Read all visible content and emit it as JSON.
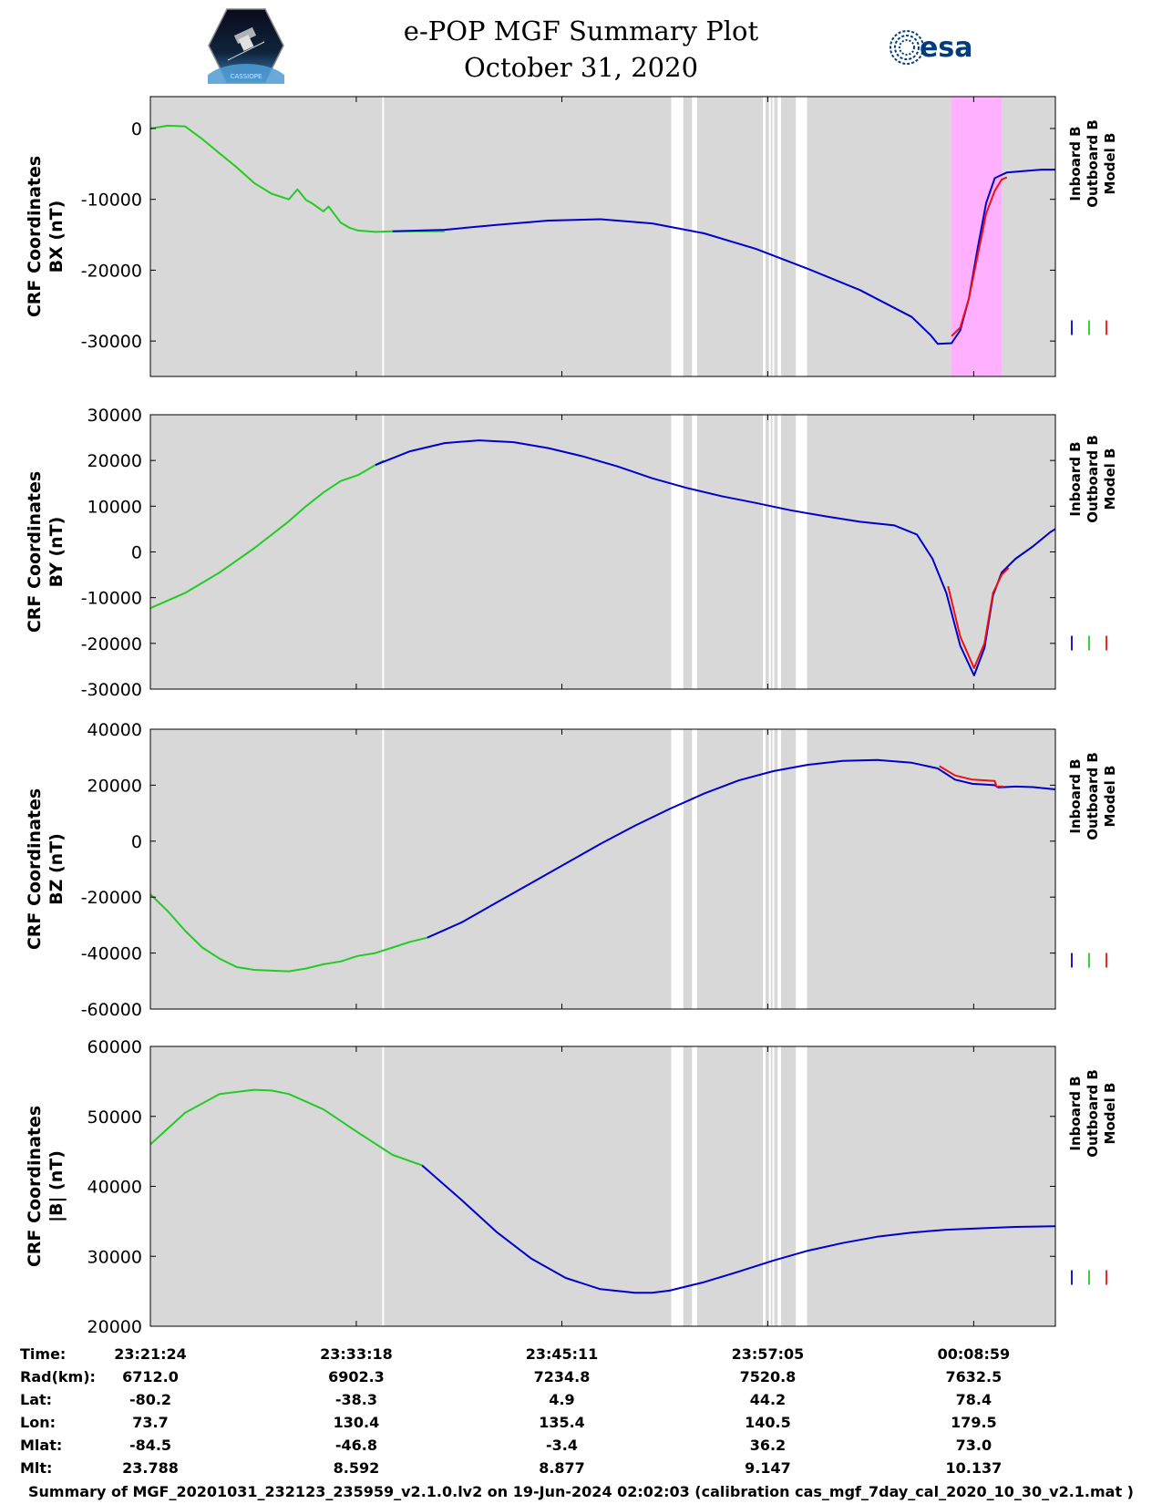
{
  "header": {
    "title_line1": "e-POP MGF Summary Plot",
    "title_line2": "October 31, 2020",
    "logo_left_caption": "CASSIOPE",
    "logo_right_text": "esa"
  },
  "colors": {
    "inboard": "#0000cc",
    "outboard": "#22cc22",
    "model": "#ee1111",
    "plot_background": "#d8d8d8",
    "highlight": "#ffb0ff"
  },
  "legend": {
    "inboard": "Inboard B",
    "outboard": "Outboard B",
    "model": "Model B"
  },
  "chart_data": [
    {
      "type": "line",
      "panel": "BX",
      "ylabel_line1": "CRF Coordinates",
      "ylabel_line2": "BX (nT)",
      "ylim": [
        -35000,
        4500
      ],
      "yticks": [
        0,
        -10000,
        -20000,
        -30000
      ],
      "ytick_labels": [
        "0",
        "-10000",
        "-20000",
        "-30000"
      ],
      "highlight_range_min": [
        46.3,
        49.2
      ],
      "series": [
        {
          "name": "Outboard B",
          "color_key": "outboard",
          "x": [
            0,
            1,
            2,
            3,
            4,
            5,
            6,
            7,
            8,
            8.5,
            9,
            9.3,
            9.6,
            10,
            10.3,
            10.6,
            11,
            11.5,
            12,
            13,
            14,
            14,
            15,
            16,
            17
          ],
          "y": [
            0,
            400,
            300,
            -1500,
            -3500,
            -5500,
            -7700,
            -9200,
            -10000,
            -8600,
            -10100,
            -10500,
            -11000,
            -11700,
            -11000,
            -12000,
            -13300,
            -14000,
            -14400,
            -14600,
            -14500,
            -14500,
            -14500,
            -14500,
            -14500
          ]
        },
        {
          "name": "Inboard B",
          "color_key": "inboard",
          "x": [
            14,
            17,
            20,
            23,
            26,
            29,
            32,
            35,
            38,
            41,
            44,
            45.1,
            45.5,
            46.3,
            46.8,
            47.3,
            47.8,
            48.3,
            48.8,
            49.5,
            50.5,
            51.5,
            52.3
          ],
          "y": [
            -14500,
            -14300,
            -13600,
            -13000,
            -12800,
            -13400,
            -14800,
            -17000,
            -19800,
            -22800,
            -26600,
            -29200,
            -30400,
            -30300,
            -28500,
            -24000,
            -17000,
            -10500,
            -7000,
            -6200,
            -6000,
            -5800,
            -5800
          ]
        },
        {
          "name": "Model B",
          "color_key": "model",
          "x": [
            46.3,
            46.8,
            47.3,
            47.8,
            48.3,
            48.8,
            49.2,
            49.5
          ],
          "y": [
            -29300,
            -28100,
            -24000,
            -18000,
            -12000,
            -8800,
            -7200,
            -6900
          ]
        }
      ]
    },
    {
      "type": "line",
      "panel": "BY",
      "ylabel_line1": "CRF Coordinates",
      "ylabel_line2": "BY (nT)",
      "ylim": [
        -30000,
        30000
      ],
      "yticks": [
        30000,
        20000,
        10000,
        0,
        -10000,
        -20000,
        -30000
      ],
      "ytick_labels": [
        "30000",
        "20000",
        "10000",
        "0",
        "-10000",
        "-20000",
        "-30000"
      ],
      "series": [
        {
          "name": "Outboard B",
          "color_key": "outboard",
          "x": [
            0,
            2,
            4,
            6,
            8,
            9,
            10,
            11,
            12,
            13,
            13.5
          ],
          "y": [
            -12300,
            -9000,
            -4500,
            800,
            6700,
            10000,
            13000,
            15500,
            16800,
            19000,
            20000
          ]
        },
        {
          "name": "Inboard B",
          "color_key": "inboard",
          "x": [
            13,
            15,
            17,
            19,
            21,
            23,
            25,
            27,
            29,
            31,
            33,
            35,
            37,
            39,
            41,
            43,
            44.3,
            45.2,
            46,
            46.8,
            47.6,
            48.2,
            48.7,
            49.2,
            50,
            51,
            52,
            52.3
          ],
          "y": [
            19000,
            22000,
            23800,
            24400,
            24000,
            22700,
            20900,
            18700,
            16100,
            14000,
            12200,
            10700,
            9100,
            7800,
            6600,
            5800,
            3800,
            -1500,
            -9000,
            -20500,
            -27000,
            -21000,
            -9500,
            -4500,
            -1500,
            1200,
            4300,
            5000
          ]
        },
        {
          "name": "Model B",
          "color_key": "model",
          "x": [
            46.1,
            46.8,
            47.6,
            48.2,
            48.7,
            49.2,
            49.6
          ],
          "y": [
            -7500,
            -18500,
            -25400,
            -20000,
            -9000,
            -5000,
            -3500
          ]
        }
      ]
    },
    {
      "type": "line",
      "panel": "BZ",
      "ylabel_line1": "CRF Coordinates",
      "ylabel_line2": "BZ (nT)",
      "ylim": [
        -60000,
        40000
      ],
      "yticks": [
        40000,
        20000,
        0,
        -20000,
        -40000,
        -60000
      ],
      "ytick_labels": [
        "40000",
        "20000",
        "0",
        "-20000",
        "-40000",
        "-60000"
      ],
      "series": [
        {
          "name": "Outboard B",
          "color_key": "outboard",
          "x": [
            0,
            1,
            2,
            3,
            4,
            5,
            6,
            7,
            8,
            9,
            10,
            10.5,
            11,
            11.5,
            12,
            13,
            14,
            15,
            16
          ],
          "y": [
            -19000,
            -25000,
            -32000,
            -38000,
            -42000,
            -45000,
            -46000,
            -46300,
            -46500,
            -45500,
            -44000,
            -43500,
            -43000,
            -42000,
            -41000,
            -40000,
            -38000,
            -36000,
            -34500
          ]
        },
        {
          "name": "Inboard B",
          "color_key": "inboard",
          "x": [
            16,
            18,
            20,
            22,
            24,
            26,
            28,
            30,
            32,
            34,
            36,
            38,
            40,
            42,
            44,
            45.5,
            46.5,
            47.5,
            48.8,
            49,
            50,
            51,
            52.3
          ],
          "y": [
            -34500,
            -29000,
            -22000,
            -15000,
            -8000,
            -1000,
            5500,
            11500,
            17000,
            21700,
            25000,
            27300,
            28700,
            29000,
            28000,
            26000,
            22000,
            20500,
            20000,
            19200,
            19500,
            19300,
            18500
          ]
        },
        {
          "name": "Model B",
          "color_key": "model",
          "x": [
            45.6,
            46.5,
            47.5,
            48.8,
            48.9,
            49.3
          ],
          "y": [
            26800,
            23500,
            22000,
            21500,
            19500,
            19500
          ]
        }
      ]
    },
    {
      "type": "line",
      "panel": "|B|",
      "ylabel_line1": "CRF Coordinates",
      "ylabel_line2": "|B| (nT)",
      "ylim": [
        20000,
        60000
      ],
      "yticks": [
        60000,
        50000,
        40000,
        30000,
        20000
      ],
      "ytick_labels": [
        "60000",
        "50000",
        "40000",
        "30000",
        "20000"
      ],
      "series": [
        {
          "name": "Outboard B",
          "color_key": "outboard",
          "x": [
            0,
            2,
            4,
            6,
            7,
            8,
            10,
            12,
            14,
            15.7
          ],
          "y": [
            46000,
            50500,
            53200,
            53800,
            53700,
            53200,
            51000,
            47700,
            44500,
            43000
          ]
        },
        {
          "name": "Inboard B",
          "color_key": "inboard",
          "x": [
            15.7,
            18,
            20,
            22,
            24,
            26,
            28,
            29,
            30,
            32,
            34,
            36,
            38,
            40,
            42,
            44,
            46,
            48,
            50,
            52.3
          ],
          "y": [
            43000,
            38000,
            33500,
            29700,
            26900,
            25300,
            24800,
            24800,
            25100,
            26300,
            27800,
            29400,
            30800,
            31900,
            32800,
            33400,
            33800,
            34000,
            34200,
            34300
          ]
        },
        {
          "name": "Model B",
          "color_key": "model",
          "x": [],
          "y": []
        }
      ]
    }
  ],
  "data_gaps_min": [
    [
      13.4,
      13.5
    ],
    [
      30.1,
      30.8
    ],
    [
      31.3,
      31.6
    ],
    [
      35.4,
      35.55
    ],
    [
      35.75,
      35.85
    ],
    [
      35.95,
      36.05
    ],
    [
      36.25,
      36.45
    ],
    [
      37.3,
      37.95
    ]
  ],
  "x_axis": {
    "range_min": [
      0,
      52.3
    ],
    "tick_positions_min": [
      0,
      11.9,
      23.78,
      35.68,
      47.58
    ]
  },
  "ephemeris_table": {
    "row_labels": [
      "Time:",
      "Rad(km):",
      "Lat:",
      "Lon:",
      "Mlat:",
      "Mlt:"
    ],
    "columns": [
      [
        "23:21:24",
        "6712.0",
        "-80.2",
        "73.7",
        "-84.5",
        "23.788"
      ],
      [
        "23:33:18",
        "6902.3",
        "-38.3",
        "130.4",
        "-46.8",
        "8.592"
      ],
      [
        "23:45:11",
        "7234.8",
        "4.9",
        "135.4",
        "-3.4",
        "8.877"
      ],
      [
        "23:57:05",
        "7520.8",
        "44.2",
        "140.5",
        "36.2",
        "9.147"
      ],
      [
        "00:08:59",
        "7632.5",
        "78.4",
        "179.5",
        "73.0",
        "10.137"
      ]
    ]
  },
  "footer": {
    "text": "Summary of MGF_20201031_232123_235959_v2.1.0.lv2 on 19-Jun-2024 02:02:03 (calibration cas_mgf_7day_cal_2020_10_30_v2.1.mat )"
  }
}
